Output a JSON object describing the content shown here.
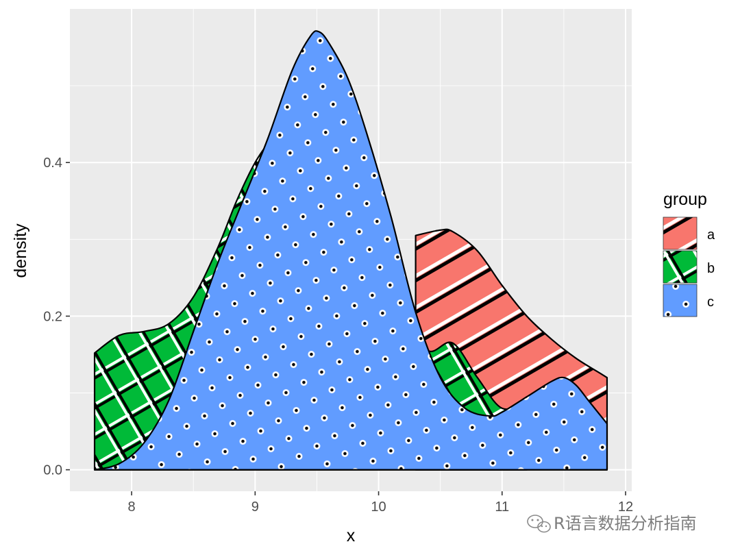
{
  "chart_data": {
    "type": "area",
    "subtype": "density",
    "xlabel": "x",
    "ylabel": "density",
    "xlim": [
      7.5,
      12.05
    ],
    "ylim": [
      -0.028,
      0.6
    ],
    "x_ticks": [
      8,
      9,
      10,
      11,
      12
    ],
    "x_tick_labels": [
      "8",
      "9",
      "10",
      "11",
      "12"
    ],
    "y_ticks": [
      0.0,
      0.2,
      0.4
    ],
    "y_tick_labels": [
      "0.0",
      "0.2",
      "0.4"
    ],
    "grid": true,
    "panel_background": "#ebebeb",
    "legend": {
      "title": "group",
      "placement": "right",
      "entries": [
        {
          "label": "a",
          "color": "#f8766d",
          "pattern": "stripes"
        },
        {
          "label": "b",
          "color": "#00ba38",
          "pattern": "crosshatch"
        },
        {
          "label": "c",
          "color": "#619cff",
          "pattern": "dots"
        }
      ]
    },
    "series": [
      {
        "name": "a",
        "color": "#f8766d",
        "pattern": "stripes",
        "x": [
          10.3,
          10.5,
          10.6,
          10.8,
          11.0,
          11.2,
          11.4,
          11.6,
          11.8,
          11.85
        ],
        "y": [
          0.305,
          0.312,
          0.31,
          0.285,
          0.24,
          0.2,
          0.17,
          0.145,
          0.125,
          0.12
        ]
      },
      {
        "name": "b",
        "color": "#00ba38",
        "pattern": "crosshatch",
        "x": [
          7.7,
          7.9,
          8.1,
          8.3,
          8.5,
          8.7,
          8.85,
          9.0,
          9.2,
          9.4,
          9.6,
          9.8,
          10.0,
          10.2,
          10.4,
          10.6,
          10.8,
          11.0,
          11.2
        ],
        "y": [
          0.152,
          0.175,
          0.18,
          0.19,
          0.225,
          0.29,
          0.35,
          0.4,
          0.45,
          0.52,
          0.5,
          0.42,
          0.3,
          0.2,
          0.155,
          0.165,
          0.12,
          0.08,
          0.09
        ]
      },
      {
        "name": "c",
        "color": "#619cff",
        "pattern": "dots",
        "x": [
          7.7,
          7.9,
          8.1,
          8.3,
          8.5,
          8.7,
          8.9,
          9.1,
          9.3,
          9.45,
          9.52,
          9.6,
          9.75,
          9.9,
          10.1,
          10.3,
          10.5,
          10.7,
          10.9,
          11.0,
          11.2,
          11.4,
          11.5,
          11.6,
          11.7,
          11.85
        ],
        "y": [
          0.0,
          0.008,
          0.035,
          0.09,
          0.18,
          0.27,
          0.35,
          0.43,
          0.52,
          0.565,
          0.57,
          0.555,
          0.51,
          0.44,
          0.33,
          0.205,
          0.12,
          0.08,
          0.07,
          0.075,
          0.095,
          0.115,
          0.12,
          0.11,
          0.09,
          0.06
        ]
      }
    ]
  },
  "watermark": {
    "icon": "wechat-icon",
    "text": "R语言数据分析指南"
  }
}
